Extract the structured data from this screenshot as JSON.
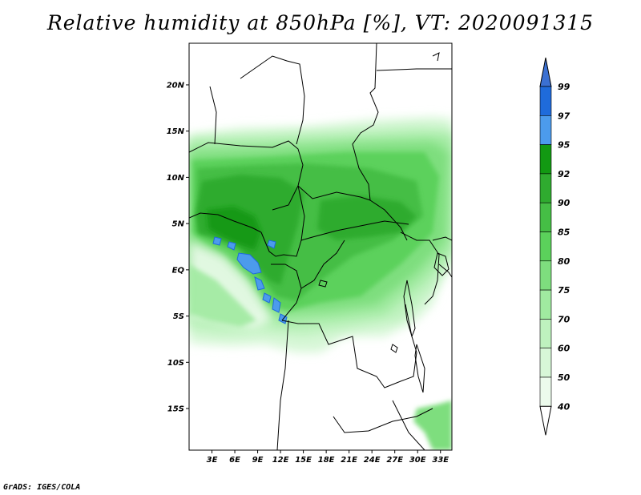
{
  "title": "Relative humidity at 850hPa [%], VT: 2020091315",
  "credit": "GrADS: IGES/COLA",
  "map": {
    "lon_range": [
      0,
      34.5
    ],
    "lat_range": [
      -19.5,
      24.5
    ],
    "lat_labels": [
      {
        "v": 20,
        "t": "20N"
      },
      {
        "v": 15,
        "t": "15N"
      },
      {
        "v": 10,
        "t": "10N"
      },
      {
        "v": 5,
        "t": "5N"
      },
      {
        "v": 0,
        "t": "EQ"
      },
      {
        "v": -5,
        "t": "5S"
      },
      {
        "v": -10,
        "t": "10S"
      },
      {
        "v": -15,
        "t": "15S"
      }
    ],
    "lon_labels": [
      {
        "v": 3,
        "t": "3E"
      },
      {
        "v": 6,
        "t": "6E"
      },
      {
        "v": 9,
        "t": "9E"
      },
      {
        "v": 12,
        "t": "12E"
      },
      {
        "v": 15,
        "t": "15E"
      },
      {
        "v": 18,
        "t": "18E"
      },
      {
        "v": 21,
        "t": "21E"
      },
      {
        "v": 24,
        "t": "24E"
      },
      {
        "v": 27,
        "t": "27E"
      },
      {
        "v": 30,
        "t": "30E"
      },
      {
        "v": 33,
        "t": "33E"
      }
    ]
  },
  "colorbar": {
    "levels": [
      "99",
      "97",
      "95",
      "92",
      "90",
      "85",
      "80",
      "75",
      "70",
      "60",
      "50",
      "40"
    ],
    "colors": [
      "#3b70d2",
      "#1f6bdb",
      "#4c9bec",
      "#129912",
      "#2fab2f",
      "#45be45",
      "#5bd15b",
      "#7ede7e",
      "#a0eaa0",
      "#bef2be",
      "#d7f7d7",
      "#ecfbec"
    ],
    "top_color": "#3b70d2"
  }
}
